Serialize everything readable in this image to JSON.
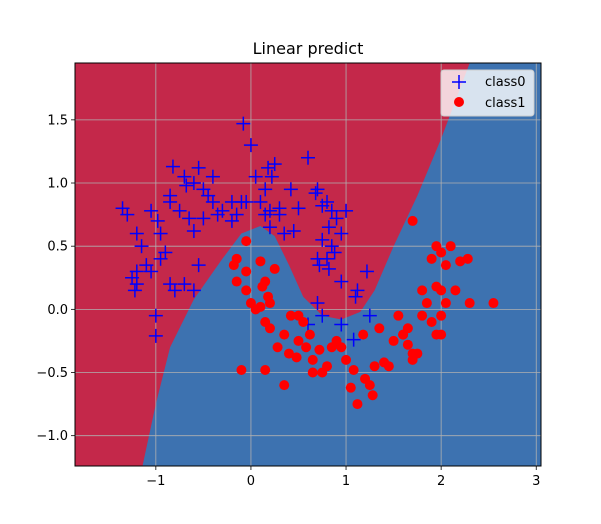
{
  "chart_data": {
    "type": "scatter",
    "title": "Linear predict",
    "xlabel": "",
    "ylabel": "",
    "xlim": [
      -1.85,
      3.05
    ],
    "ylim": [
      -1.24,
      1.95
    ],
    "xticks": [
      -1,
      0,
      1,
      2,
      3
    ],
    "yticks": [
      -1.0,
      -0.5,
      0.0,
      0.5,
      1.0,
      1.5
    ],
    "ytick_labels": [
      "−1.0",
      "−0.5",
      "0.0",
      "0.5",
      "1.0",
      "1.5"
    ],
    "xtick_labels": [
      "−1",
      "0",
      "1",
      "2",
      "3"
    ],
    "grid": true,
    "legend_position": "upper-right",
    "decision_regions": {
      "class0_color": "#c4284a",
      "class1_color": "#3d72b0",
      "boundary": [
        [
          -1.14,
          -1.24
        ],
        [
          -1.0,
          -0.75
        ],
        [
          -0.85,
          -0.3
        ],
        [
          -0.6,
          0.08
        ],
        [
          -0.3,
          0.4
        ],
        [
          -0.1,
          0.6
        ],
        [
          0.1,
          0.66
        ],
        [
          0.25,
          0.58
        ],
        [
          0.4,
          0.35
        ],
        [
          0.55,
          0.1
        ],
        [
          0.75,
          -0.05
        ],
        [
          0.95,
          -0.08
        ],
        [
          1.15,
          -0.02
        ],
        [
          1.3,
          0.15
        ],
        [
          1.5,
          0.5
        ],
        [
          1.75,
          0.9
        ],
        [
          2.0,
          1.35
        ],
        [
          2.2,
          1.75
        ],
        [
          2.3,
          1.95
        ]
      ]
    },
    "series": [
      {
        "name": "class0",
        "marker": "+",
        "color": "#0000ff",
        "points": [
          [
            -1.35,
            0.8
          ],
          [
            -1.3,
            0.75
          ],
          [
            -1.2,
            0.6
          ],
          [
            -1.15,
            0.5
          ],
          [
            -1.1,
            0.35
          ],
          [
            -1.05,
            0.3
          ],
          [
            -1.2,
            0.3
          ],
          [
            -1.25,
            0.25
          ],
          [
            -1.2,
            0.2
          ],
          [
            -1.22,
            0.15
          ],
          [
            -1.05,
            0.78
          ],
          [
            -0.98,
            0.7
          ],
          [
            -0.95,
            0.6
          ],
          [
            -0.9,
            0.45
          ],
          [
            -0.95,
            0.4
          ],
          [
            -1.0,
            -0.05
          ],
          [
            -1.0,
            -0.21
          ],
          [
            -0.85,
            0.2
          ],
          [
            -0.8,
            0.15
          ],
          [
            -0.7,
            0.2
          ],
          [
            -0.6,
            0.15
          ],
          [
            -0.55,
            0.35
          ],
          [
            -0.85,
            0.9
          ],
          [
            -0.85,
            0.85
          ],
          [
            -0.82,
            1.13
          ],
          [
            -0.7,
            1.05
          ],
          [
            -0.68,
            0.98
          ],
          [
            -0.6,
            1.0
          ],
          [
            -0.5,
            0.95
          ],
          [
            -0.45,
            0.9
          ],
          [
            -0.4,
            1.05
          ],
          [
            -0.35,
            0.75
          ],
          [
            -0.3,
            0.78
          ],
          [
            -0.55,
            1.12
          ],
          [
            -0.2,
            0.7
          ],
          [
            -0.15,
            0.75
          ],
          [
            -0.1,
            0.85
          ],
          [
            -0.05,
            0.85
          ],
          [
            -0.08,
            1.47
          ],
          [
            0.0,
            1.3
          ],
          [
            0.05,
            1.05
          ],
          [
            0.1,
            0.85
          ],
          [
            0.15,
            0.75
          ],
          [
            0.2,
            0.78
          ],
          [
            0.18,
            1.12
          ],
          [
            0.25,
            1.15
          ],
          [
            0.22,
            1.05
          ],
          [
            0.15,
            0.95
          ],
          [
            0.3,
            0.8
          ],
          [
            0.3,
            0.75
          ],
          [
            0.35,
            0.6
          ],
          [
            0.42,
            0.95
          ],
          [
            0.45,
            0.62
          ],
          [
            0.5,
            0.8
          ],
          [
            0.6,
            1.2
          ],
          [
            0.68,
            0.92
          ],
          [
            0.7,
            0.95
          ],
          [
            0.75,
            0.82
          ],
          [
            0.8,
            0.85
          ],
          [
            0.85,
            0.78
          ],
          [
            0.9,
            0.72
          ],
          [
            0.95,
            0.6
          ],
          [
            1.0,
            0.78
          ],
          [
            0.82,
            0.65
          ],
          [
            0.85,
            0.5
          ],
          [
            0.88,
            0.45
          ],
          [
            0.75,
            0.55
          ],
          [
            0.7,
            0.4
          ],
          [
            0.72,
            0.35
          ],
          [
            0.8,
            0.4
          ],
          [
            0.82,
            0.32
          ],
          [
            0.95,
            0.22
          ],
          [
            0.7,
            0.05
          ],
          [
            0.75,
            -0.05
          ],
          [
            0.6,
            -0.12
          ],
          [
            0.95,
            -0.12
          ],
          [
            1.08,
            -0.24
          ],
          [
            1.12,
            0.15
          ],
          [
            1.1,
            0.1
          ],
          [
            1.22,
            0.3
          ],
          [
            1.25,
            -0.05
          ],
          [
            0.2,
            0.65
          ],
          [
            -0.2,
            0.85
          ],
          [
            -0.4,
            0.85
          ],
          [
            -0.5,
            0.72
          ],
          [
            -0.6,
            0.62
          ],
          [
            -0.65,
            0.72
          ],
          [
            -0.75,
            0.78
          ]
        ]
      },
      {
        "name": "class1",
        "marker": "o",
        "color": "#ff0000",
        "points": [
          [
            -0.15,
            0.4
          ],
          [
            -0.18,
            0.35
          ],
          [
            -0.05,
            0.54
          ],
          [
            -0.15,
            0.22
          ],
          [
            -0.05,
            0.15
          ],
          [
            0.0,
            0.05
          ],
          [
            0.05,
            0.0
          ],
          [
            0.1,
            0.38
          ],
          [
            0.15,
            0.22
          ],
          [
            0.12,
            0.18
          ],
          [
            0.18,
            0.1
          ],
          [
            0.2,
            0.05
          ],
          [
            0.1,
            0.02
          ],
          [
            0.15,
            -0.1
          ],
          [
            0.2,
            -0.15
          ],
          [
            0.28,
            -0.3
          ],
          [
            0.35,
            -0.2
          ],
          [
            0.4,
            -0.35
          ],
          [
            0.5,
            -0.05
          ],
          [
            0.55,
            -0.1
          ],
          [
            0.48,
            -0.38
          ],
          [
            0.58,
            -0.3
          ],
          [
            0.62,
            -0.2
          ],
          [
            0.65,
            -0.4
          ],
          [
            0.72,
            -0.32
          ],
          [
            0.75,
            -0.5
          ],
          [
            0.8,
            -0.45
          ],
          [
            0.85,
            -0.3
          ],
          [
            0.9,
            -0.25
          ],
          [
            0.95,
            -0.3
          ],
          [
            1.0,
            -0.4
          ],
          [
            1.05,
            -0.62
          ],
          [
            1.08,
            -0.48
          ],
          [
            1.12,
            -0.75
          ],
          [
            1.18,
            -0.2
          ],
          [
            1.2,
            -0.55
          ],
          [
            1.25,
            -0.6
          ],
          [
            1.28,
            -0.68
          ],
          [
            1.3,
            -0.45
          ],
          [
            1.35,
            -0.15
          ],
          [
            1.4,
            -0.42
          ],
          [
            1.45,
            -0.45
          ],
          [
            1.5,
            -0.25
          ],
          [
            1.55,
            -0.05
          ],
          [
            1.6,
            -0.2
          ],
          [
            1.65,
            -0.15
          ],
          [
            1.7,
            -0.35
          ],
          [
            1.65,
            -0.28
          ],
          [
            1.7,
            -0.4
          ],
          [
            1.75,
            -0.35
          ],
          [
            1.8,
            -0.05
          ],
          [
            1.8,
            0.15
          ],
          [
            1.85,
            0.05
          ],
          [
            1.9,
            0.4
          ],
          [
            1.95,
            0.5
          ],
          [
            2.0,
            0.45
          ],
          [
            2.05,
            0.35
          ],
          [
            2.1,
            0.5
          ],
          [
            1.95,
            0.18
          ],
          [
            2.0,
            0.15
          ],
          [
            2.05,
            0.05
          ],
          [
            2.15,
            0.15
          ],
          [
            2.2,
            0.38
          ],
          [
            2.28,
            0.4
          ],
          [
            2.3,
            0.05
          ],
          [
            2.55,
            0.05
          ],
          [
            1.7,
            0.7
          ],
          [
            1.9,
            -0.1
          ],
          [
            1.95,
            -0.2
          ],
          [
            2.0,
            -0.2
          ],
          [
            2.0,
            -0.05
          ],
          [
            1.6,
            -0.2
          ],
          [
            0.35,
            -0.6
          ],
          [
            0.65,
            -0.5
          ],
          [
            0.5,
            -0.25
          ],
          [
            0.42,
            -0.05
          ],
          [
            -0.1,
            -0.48
          ],
          [
            0.15,
            -0.48
          ],
          [
            -0.05,
            0.3
          ],
          [
            0.25,
            0.32
          ]
        ]
      }
    ]
  }
}
